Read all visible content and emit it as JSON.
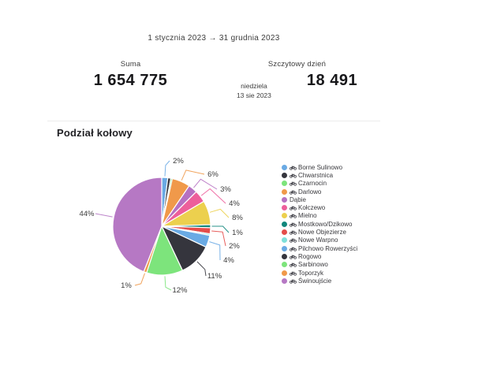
{
  "header": {
    "date_range": "1 stycznia 2023 → 31 grudnia 2023"
  },
  "stats": {
    "sum": {
      "label": "Suma",
      "value": "1 654 775"
    },
    "peak": {
      "label": "Szczytowy dzień",
      "value": "18 491",
      "day": "niedziela",
      "date": "13 sie 2023"
    }
  },
  "section": {
    "title": "Podział kołowy"
  },
  "chart_data": {
    "type": "pie",
    "title": "Podział kołowy",
    "unit": "%",
    "start_angle": "top-clockwise",
    "legend_position": "right",
    "total_percent": 100,
    "slices": [
      {
        "label": "Borne Sulinowo",
        "value": 2,
        "percent_label": "2%",
        "color": "#6aaae4",
        "bike_icon": true,
        "label_pos": [
          226,
          205
        ]
      },
      {
        "label": "Chwarstnica",
        "value": 1,
        "percent_label": "",
        "color": "#35353d",
        "bike_icon": true
      },
      {
        "label": "Czarnocin",
        "value": 0.5,
        "percent_label": "",
        "color": "#7de47c",
        "bike_icon": true
      },
      {
        "label": "Darlowo",
        "value": 6,
        "percent_label": "6%",
        "color": "#f0994a",
        "bike_icon": true,
        "label_pos": [
          270,
          222
        ]
      },
      {
        "label": "Dąbie",
        "value": 3,
        "percent_label": "3%",
        "color": "#b671c2",
        "bike_icon": false,
        "label_pos": [
          286,
          241
        ]
      },
      {
        "label": "Kołczewo",
        "value": 4,
        "percent_label": "4%",
        "color": "#ed5f9b",
        "bike_icon": true,
        "label_pos": [
          297,
          259
        ]
      },
      {
        "label": "Mielno",
        "value": 8,
        "percent_label": "8%",
        "color": "#ecd04e",
        "bike_icon": true,
        "label_pos": [
          301,
          277
        ]
      },
      {
        "label": "Mostkowo/Dzikowo",
        "value": 1,
        "percent_label": "1%",
        "color": "#12877c",
        "bike_icon": true,
        "label_pos": [
          301,
          296
        ]
      },
      {
        "label": "Nowe Objezierze",
        "value": 2,
        "percent_label": "2%",
        "color": "#e44d4a",
        "bike_icon": true,
        "label_pos": [
          297,
          313
        ]
      },
      {
        "label": "Nowe Warpno",
        "value": 0.5,
        "percent_label": "",
        "color": "#7fe0da",
        "bike_icon": true
      },
      {
        "label": "Pilchowo Rowerzyści",
        "value": 4,
        "percent_label": "4%",
        "color": "#6aaae4",
        "bike_icon": true,
        "label_pos": [
          290,
          331
        ]
      },
      {
        "label": "Rogowo",
        "value": 11,
        "percent_label": "11%",
        "color": "#35353d",
        "bike_icon": true,
        "label_pos": [
          272,
          351
        ]
      },
      {
        "label": "Sarbinowo",
        "value": 12,
        "percent_label": "12%",
        "color": "#7de47c",
        "bike_icon": true,
        "label_pos": [
          228,
          369
        ]
      },
      {
        "label": "Toporzyk",
        "value": 1,
        "percent_label": "1%",
        "color": "#f0994a",
        "bike_icon": true,
        "label_pos": [
          160,
          363
        ]
      },
      {
        "label": "Świnoujście",
        "value": 44,
        "percent_label": "44%",
        "color": "#b678c4",
        "bike_icon": true,
        "label_pos": [
          110,
          272
        ]
      }
    ]
  }
}
